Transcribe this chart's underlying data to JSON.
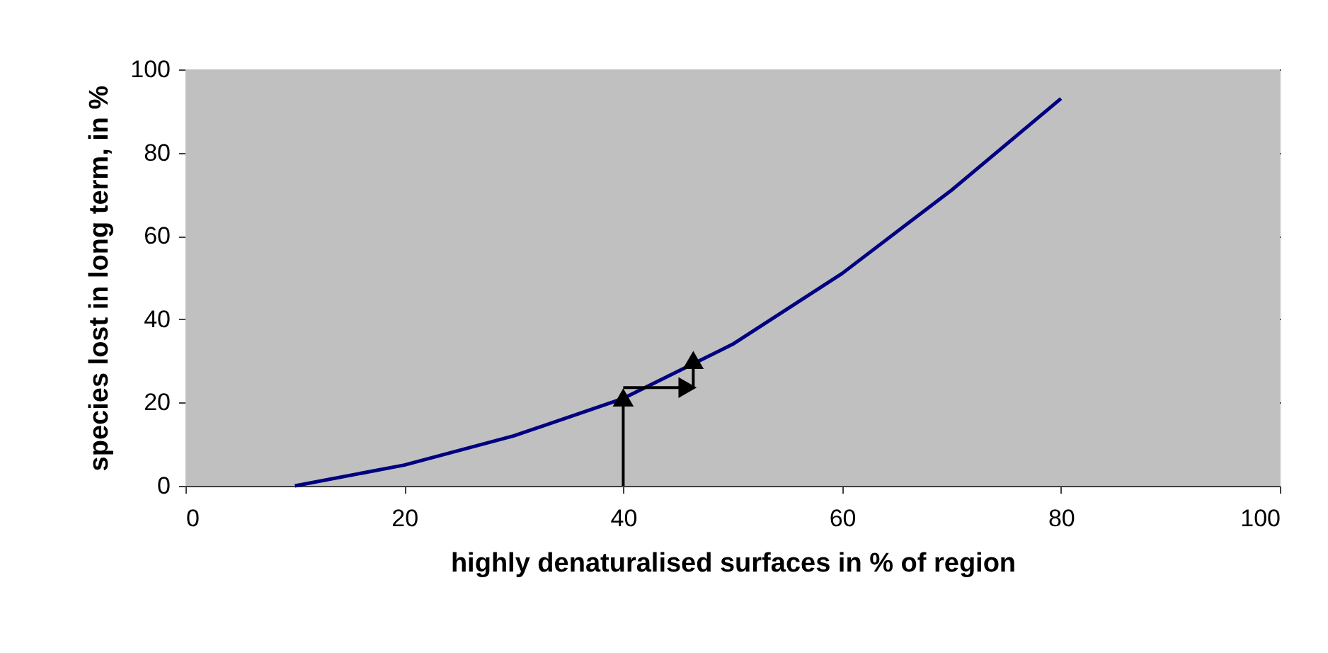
{
  "chart_data": {
    "type": "line",
    "x": [
      10,
      20,
      30,
      40,
      50,
      60,
      70,
      80
    ],
    "series": [
      {
        "color": "#000080",
        "values": [
          0,
          5,
          12,
          21,
          34,
          51,
          71,
          93
        ]
      }
    ],
    "xlabel": "highly denaturalised surfaces in % of region",
    "ylabel": "species lost in long term, in %",
    "xlim": [
      0,
      100
    ],
    "xticks": [
      0,
      20,
      40,
      60,
      80,
      100
    ],
    "ylim": [
      0,
      100
    ],
    "yticks": [
      0,
      20,
      40,
      60,
      80,
      100
    ],
    "grid": "y",
    "marker": "none",
    "line_style": "solid",
    "legend": false
  }
}
